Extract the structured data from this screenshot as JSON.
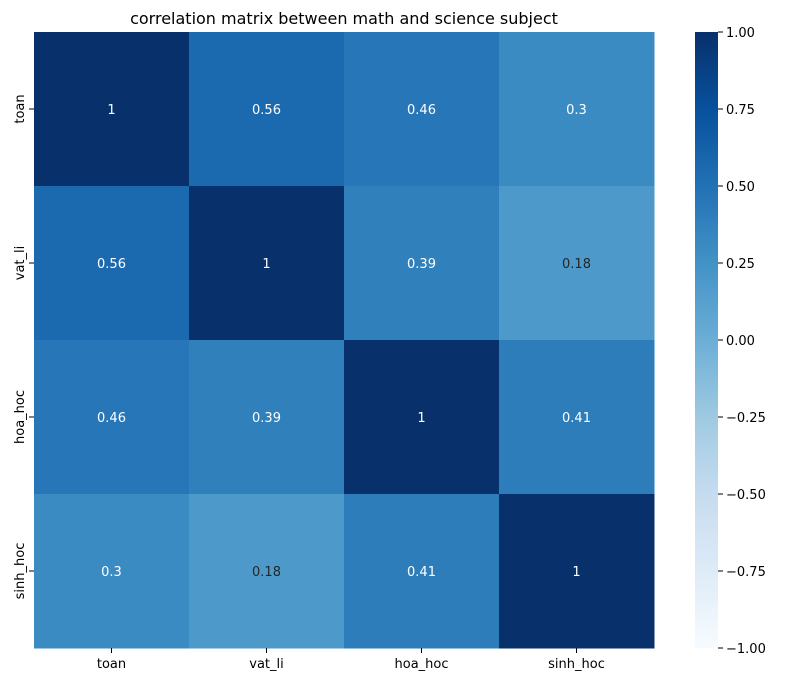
{
  "chart_data": {
    "type": "heatmap",
    "title": "correlation matrix between math and science subject",
    "xlabel": "",
    "ylabel": "",
    "x_categories": [
      "toan",
      "vat_li",
      "hoa_hoc",
      "sinh_hoc"
    ],
    "y_categories": [
      "toan",
      "vat_li",
      "hoa_hoc",
      "sinh_hoc"
    ],
    "values": [
      [
        1,
        0.56,
        0.46,
        0.3
      ],
      [
        0.56,
        1,
        0.39,
        0.18
      ],
      [
        0.46,
        0.39,
        1,
        0.41
      ],
      [
        0.3,
        0.18,
        0.41,
        1
      ]
    ],
    "cell_labels": [
      [
        "1",
        "0.56",
        "0.46",
        "0.3"
      ],
      [
        "0.56",
        "1",
        "0.39",
        "0.18"
      ],
      [
        "0.46",
        "0.39",
        "1",
        "0.41"
      ],
      [
        "0.3",
        "0.18",
        "0.41",
        "1"
      ]
    ],
    "colormap": "Blues",
    "colorbar": {
      "range": [
        -1,
        1
      ],
      "ticks": [
        1.0,
        0.75,
        0.5,
        0.25,
        0.0,
        -0.25,
        -0.5,
        -0.75,
        -1.0
      ],
      "tick_labels": [
        "1.00",
        "0.75",
        "0.50",
        "0.25",
        "0.00",
        "−0.25",
        "−0.50",
        "−0.75",
        "−1.00"
      ]
    },
    "grid": false,
    "legend": "right"
  }
}
